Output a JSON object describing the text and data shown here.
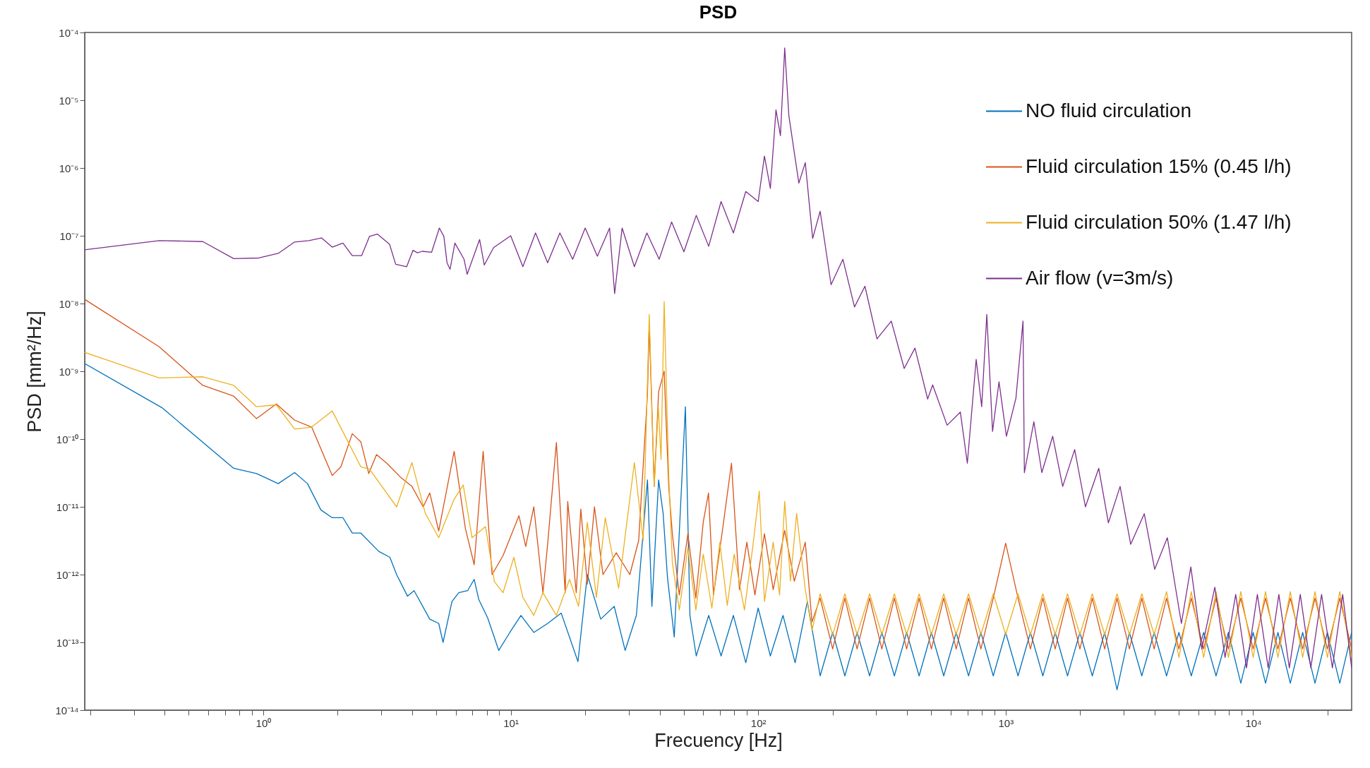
{
  "chart_data": {
    "type": "line",
    "title": "PSD",
    "xlabel": "Frecuency [Hz]",
    "ylabel": "PSD [mm²/Hz]",
    "log": "xy",
    "legend": "top right",
    "xlim": [
      0.19,
      25000
    ],
    "ylim": [
      1e-14,
      0.0001
    ],
    "xticks": [
      {
        "value": 0.2,
        "label": null
      },
      {
        "value": 0.3,
        "label": null
      },
      {
        "value": 0.4,
        "label": null
      },
      {
        "value": 0.5,
        "label": null
      },
      {
        "value": 0.6,
        "label": null
      },
      {
        "value": 0.7,
        "label": null
      },
      {
        "value": 0.8,
        "label": null
      },
      {
        "value": 0.9,
        "label": null
      },
      {
        "value": 1,
        "label": "10⁰"
      },
      {
        "value": 2,
        "label": null
      },
      {
        "value": 3,
        "label": null
      },
      {
        "value": 4,
        "label": null
      },
      {
        "value": 5,
        "label": null
      },
      {
        "value": 6,
        "label": null
      },
      {
        "value": 7,
        "label": null
      },
      {
        "value": 8,
        "label": null
      },
      {
        "value": 9,
        "label": null
      },
      {
        "value": 10,
        "label": "10¹"
      },
      {
        "value": 20,
        "label": null
      },
      {
        "value": 30,
        "label": null
      },
      {
        "value": 40,
        "label": null
      },
      {
        "value": 50,
        "label": null
      },
      {
        "value": 60,
        "label": null
      },
      {
        "value": 70,
        "label": null
      },
      {
        "value": 80,
        "label": null
      },
      {
        "value": 90,
        "label": null
      },
      {
        "value": 100,
        "label": "10²"
      },
      {
        "value": 200,
        "label": null
      },
      {
        "value": 300,
        "label": null
      },
      {
        "value": 400,
        "label": null
      },
      {
        "value": 500,
        "label": null
      },
      {
        "value": 600,
        "label": null
      },
      {
        "value": 700,
        "label": null
      },
      {
        "value": 800,
        "label": null
      },
      {
        "value": 900,
        "label": null
      },
      {
        "value": 1000,
        "label": "10³"
      },
      {
        "value": 2000,
        "label": null
      },
      {
        "value": 3000,
        "label": null
      },
      {
        "value": 4000,
        "label": null
      },
      {
        "value": 5000,
        "label": null
      },
      {
        "value": 6000,
        "label": null
      },
      {
        "value": 7000,
        "label": null
      },
      {
        "value": 8000,
        "label": null
      },
      {
        "value": 9000,
        "label": null
      },
      {
        "value": 10000,
        "label": "10⁴"
      },
      {
        "value": 20000,
        "label": null
      }
    ],
    "yticks": [
      {
        "value": 1e-14,
        "label": "10⁻¹⁴"
      },
      {
        "value": 1e-13,
        "label": "10⁻¹³"
      },
      {
        "value": 1e-12,
        "label": "10⁻¹²"
      },
      {
        "value": 1e-11,
        "label": "10⁻¹¹"
      },
      {
        "value": 1e-10,
        "label": "10⁻¹⁰"
      },
      {
        "value": 1e-09,
        "label": "10⁻⁹"
      },
      {
        "value": 1e-08,
        "label": "10⁻⁸"
      },
      {
        "value": 1e-07,
        "label": "10⁻⁷"
      },
      {
        "value": 1e-06,
        "label": "10⁻⁶"
      },
      {
        "value": 1e-05,
        "label": "10⁻⁵"
      },
      {
        "value": 0.0001,
        "label": "10⁻⁴"
      }
    ],
    "series": [
      {
        "name": "NO fluid circulation",
        "color": "#0072bd",
        "x": [
          0.19,
          0.39,
          0.76,
          0.94,
          1.15,
          1.34,
          1.51,
          1.71,
          1.9,
          2.1,
          2.29,
          2.48,
          2.93,
          3.25,
          3.46,
          3.83,
          4.07,
          4.71,
          5.12,
          5.33,
          5.79,
          6.17,
          6.7,
          7.12,
          7.43,
          8.07,
          8.95,
          9.92,
          11,
          12.4,
          14.1,
          16,
          18.7,
          20.4,
          23.1,
          26.2,
          29,
          32.2,
          35.7,
          37.2,
          39.6,
          41.3,
          43,
          45.8,
          50.8,
          53,
          56.2,
          63.1,
          70.8,
          79.4,
          89.1,
          100,
          112,
          126,
          141,
          158,
          178,
          200,
          224,
          251,
          282,
          316,
          355,
          398,
          447,
          501,
          562,
          631,
          708,
          794,
          891,
          1000,
          1122,
          1259,
          1413,
          1585,
          1778,
          1995,
          2239,
          2512,
          2818,
          3162,
          3548,
          3981,
          4467,
          5012,
          5623,
          6310,
          7079,
          7943,
          8913,
          10000,
          11220,
          12590,
          14130,
          15850,
          17780,
          19950,
          22390,
          25000
        ],
        "values": [
          1.3e-09,
          2.9e-10,
          3.7e-11,
          3.1e-11,
          2.2e-11,
          3.2e-11,
          2.2e-11,
          9e-12,
          6.9e-12,
          6.9e-12,
          4.1e-12,
          4.1e-12,
          2.2e-12,
          1.8e-12,
          1e-12,
          4.8e-13,
          5.8e-13,
          2.2e-13,
          1.9e-13,
          1e-13,
          4e-13,
          5.4e-13,
          5.8e-13,
          8.5e-13,
          4.3e-13,
          2.3e-13,
          7.6e-14,
          1.4e-13,
          2.5e-13,
          1.4e-13,
          1.9e-13,
          2.7e-13,
          5.2e-14,
          1e-12,
          2.2e-13,
          3.4e-13,
          7.6e-14,
          2.5e-13,
          2.5e-11,
          3.4e-13,
          2.5e-11,
          8e-12,
          9.1e-13,
          1.2e-13,
          3e-10,
          2.5e-13,
          6.3e-14,
          2.5e-13,
          6.3e-14,
          2.5e-13,
          5e-14,
          3.2e-13,
          6.3e-14,
          2.5e-13,
          5e-14,
          4e-13,
          3.2e-14,
          1.4e-13,
          3.2e-14,
          1.4e-13,
          3.2e-14,
          1.4e-13,
          3.2e-14,
          1.4e-13,
          3.2e-14,
          1.4e-13,
          3.2e-14,
          1.4e-13,
          3.2e-14,
          1.4e-13,
          3.2e-14,
          1.4e-13,
          3.2e-14,
          1.4e-13,
          3.2e-14,
          1.4e-13,
          3.2e-14,
          1.4e-13,
          3.2e-14,
          1.4e-13,
          2e-14,
          1.4e-13,
          3.2e-14,
          1.4e-13,
          3.2e-14,
          1.4e-13,
          3.2e-14,
          1.4e-13,
          3.2e-14,
          1.4e-13,
          2.5e-14,
          1.4e-13,
          2.5e-14,
          1.4e-13,
          2.5e-14,
          1.4e-13,
          2.5e-14,
          1.4e-13,
          2.5e-14,
          1.4e-13
        ]
      },
      {
        "name": "Fluid circulation 15% (0.45 l/h)",
        "color": "#d95319",
        "x": [
          0.19,
          0.38,
          0.57,
          0.76,
          0.94,
          1.13,
          1.34,
          1.57,
          1.9,
          2.06,
          2.29,
          2.48,
          2.67,
          2.87,
          3.18,
          3.6,
          3.99,
          4.43,
          4.71,
          5.12,
          5.91,
          6.56,
          7.12,
          7.74,
          8.41,
          9.31,
          10.8,
          11.5,
          12.4,
          13.5,
          14.1,
          15.3,
          16.6,
          17,
          18.4,
          19.2,
          20.4,
          21.8,
          23.6,
          26.7,
          30.3,
          32.9,
          35.7,
          36.3,
          38,
          39.6,
          41.7,
          43.5,
          45,
          48,
          52,
          56,
          60,
          63,
          66,
          72,
          78,
          84,
          90,
          97,
          106,
          115,
          128,
          140,
          155,
          165,
          178,
          200,
          224,
          251,
          282,
          316,
          355,
          398,
          447,
          501,
          562,
          631,
          708,
          794,
          891,
          1000,
          1122,
          1259,
          1413,
          1585,
          1778,
          1995,
          2239,
          2512,
          2818,
          3162,
          3548,
          3981,
          4467,
          5012,
          5623,
          6310,
          7079,
          7943,
          8913,
          10000,
          11220,
          12590,
          14130,
          15850,
          17780,
          19950,
          22390,
          25000
        ],
        "values": [
          1.15e-08,
          2.3e-09,
          6.2e-10,
          4.3e-10,
          2e-10,
          3.3e-10,
          1.9e-10,
          1.5e-10,
          2.9e-11,
          3.9e-11,
          1.2e-10,
          9.1e-11,
          3.1e-11,
          5.9e-11,
          4.3e-11,
          2.7e-11,
          2e-11,
          1e-11,
          1.6e-11,
          4.4e-12,
          6.6e-11,
          4.8e-12,
          1.4e-12,
          6.6e-11,
          1e-12,
          1.9e-12,
          7.4e-12,
          2.6e-12,
          1e-11,
          5.4e-13,
          2.8e-12,
          8.9e-11,
          5.4e-13,
          1.2e-11,
          5.4e-13,
          9.3e-12,
          7.2e-13,
          1e-11,
          1e-12,
          2.1e-12,
          1e-12,
          3.2e-12,
          4.6e-10,
          5e-09,
          2e-11,
          5e-10,
          1e-09,
          2e-11,
          4e-12,
          5e-13,
          4e-12,
          4.5e-13,
          6e-12,
          1.6e-11,
          5e-13,
          5e-12,
          4.4e-11,
          6e-13,
          3e-12,
          5e-13,
          4e-12,
          6e-13,
          4.5e-12,
          8e-13,
          3e-12,
          2e-13,
          4.5e-13,
          8e-14,
          4.5e-13,
          8e-14,
          4.5e-13,
          8e-14,
          4.5e-13,
          8e-14,
          4.5e-13,
          8e-14,
          4.5e-13,
          8e-14,
          4.5e-13,
          8e-14,
          4.5e-13,
          2.9e-12,
          4.5e-13,
          8e-14,
          4.5e-13,
          8e-14,
          4.5e-13,
          8e-14,
          4.5e-13,
          8e-14,
          4.5e-13,
          8e-14,
          4.5e-13,
          8e-14,
          4.5e-13,
          8e-14,
          4.5e-13,
          8e-14,
          4.5e-13,
          8e-14,
          4.5e-13,
          8e-14,
          4.5e-13,
          8e-14,
          4.5e-13,
          8e-14,
          4.5e-13,
          8e-14,
          4.5e-13,
          8e-14
        ]
      },
      {
        "name": "Fluid circulation 50% (1.47 l/h)",
        "color": "#edb120",
        "x": [
          0.19,
          0.38,
          0.57,
          0.76,
          0.94,
          1.13,
          1.34,
          1.57,
          1.9,
          2.48,
          2.69,
          3.46,
          3.99,
          4.52,
          5.12,
          5.91,
          6.43,
          6.98,
          7.91,
          8.59,
          9.31,
          10.3,
          11.2,
          12.4,
          13.5,
          15.3,
          17.3,
          18.8,
          20.4,
          22.2,
          24.1,
          27.3,
          31.6,
          34.3,
          36.3,
          38,
          39.5,
          40.5,
          41.7,
          43.5,
          45,
          48,
          52,
          56,
          60,
          65,
          70,
          75,
          80,
          88,
          95,
          101,
          106,
          115,
          122,
          128,
          135,
          143,
          155,
          165,
          178,
          200,
          224,
          251,
          282,
          316,
          355,
          398,
          447,
          501,
          562,
          631,
          708,
          794,
          891,
          1000,
          1122,
          1259,
          1413,
          1585,
          1778,
          1995,
          2239,
          2512,
          2818,
          3162,
          3548,
          3981,
          4467,
          5012,
          5623,
          6310,
          7079,
          7943,
          8913,
          10000,
          11220,
          12590,
          14130,
          15850,
          17780,
          19950,
          22390,
          25000
        ],
        "values": [
          1.9e-09,
          8e-10,
          8.3e-10,
          6.2e-10,
          3e-10,
          3.2e-10,
          1.4e-10,
          1.5e-10,
          2.6e-10,
          3.9e-11,
          3.6e-11,
          1e-11,
          4.5e-11,
          8e-12,
          3.5e-12,
          1.3e-11,
          2.1e-11,
          3.5e-12,
          5.1e-12,
          7.9e-13,
          5.4e-13,
          1.8e-12,
          4.6e-13,
          2.5e-13,
          5.4e-13,
          2.5e-13,
          8.5e-13,
          3.4e-13,
          5.9e-12,
          4.6e-13,
          6.9e-12,
          6.3e-13,
          4.5e-11,
          3.2e-12,
          6.9e-09,
          2e-11,
          3e-10,
          5e-11,
          1.07e-08,
          3e-11,
          1.5e-12,
          3e-13,
          2.5e-12,
          3e-13,
          2e-12,
          3.2e-13,
          3e-12,
          3.5e-13,
          2e-12,
          3e-13,
          2.5e-12,
          1.7e-11,
          4e-13,
          3e-12,
          5e-13,
          1.2e-11,
          8e-13,
          8e-12,
          6e-13,
          1.5e-13,
          5.2e-13,
          1.3e-13,
          5.2e-13,
          1.3e-13,
          5.2e-13,
          1.3e-13,
          5.2e-13,
          1.3e-13,
          5.2e-13,
          1.3e-13,
          5.2e-13,
          1.3e-13,
          5.2e-13,
          1.3e-13,
          5.2e-13,
          1.3e-13,
          5.2e-13,
          1.3e-13,
          5.2e-13,
          1.3e-13,
          5.2e-13,
          1.3e-13,
          5.2e-13,
          1.3e-13,
          5.2e-13,
          1.3e-13,
          5.2e-13,
          1.3e-13,
          5.6e-13,
          6e-14,
          5.6e-13,
          6e-14,
          5.6e-13,
          6e-14,
          5.6e-13,
          6e-14,
          5.6e-13,
          6e-14,
          5.6e-13,
          6e-14,
          5.6e-13,
          6e-14,
          5.6e-13,
          6e-14
        ]
      },
      {
        "name": "Air flow (v=3m/s)",
        "color": "#7e2f8e",
        "x": [
          0.19,
          0.38,
          0.57,
          0.76,
          0.96,
          1.15,
          1.34,
          1.53,
          1.72,
          1.9,
          2.1,
          2.29,
          2.5,
          2.69,
          2.89,
          3.24,
          3.43,
          3.8,
          4.03,
          4.2,
          4.39,
          4.79,
          5.15,
          5.37,
          5.53,
          5.69,
          5.95,
          6.48,
          6.67,
          7.49,
          7.82,
          8.53,
          10,
          11.2,
          12.6,
          14.1,
          15.8,
          17.8,
          20,
          22.4,
          25.1,
          26.3,
          28.2,
          31.6,
          35.5,
          39.8,
          44.7,
          50.1,
          56.2,
          63.1,
          70.8,
          79.4,
          89.1,
          100,
          106,
          112,
          118,
          123,
          128,
          133,
          139,
          146,
          155,
          166,
          178,
          197,
          220,
          245,
          270,
          302,
          345,
          389,
          430,
          484,
          507,
          580,
          656,
          700,
          760,
          800,
          839,
          885,
          940,
          1007,
          1100,
          1175,
          1190,
          1300,
          1400,
          1549,
          1700,
          1900,
          2100,
          2377,
          2600,
          2900,
          3200,
          3631,
          4000,
          4500,
          5129,
          5600,
          6200,
          7000,
          7700,
          8500,
          9400,
          10400,
          11500,
          12700,
          14000,
          15500,
          17100,
          18900,
          20900,
          23000,
          25000
        ],
        "values": [
          6.2e-08,
          8.5e-08,
          8.2e-08,
          4.6e-08,
          4.7e-08,
          5.5e-08,
          8.1e-08,
          8.5e-08,
          9.3e-08,
          6.8e-08,
          7.8e-08,
          5.1e-08,
          5.1e-08,
          9.8e-08,
          1.06e-07,
          7.5e-08,
          3.8e-08,
          3.5e-08,
          6.1e-08,
          5.6e-08,
          5.9e-08,
          5.7e-08,
          1.3e-07,
          9.8e-08,
          4e-08,
          3.2e-08,
          7.8e-08,
          4.5e-08,
          2.7e-08,
          8.8e-08,
          3.7e-08,
          6.7e-08,
          1e-07,
          3.5e-08,
          1.1e-07,
          4e-08,
          1.1e-07,
          4.5e-08,
          1.3e-07,
          5e-08,
          1.3e-07,
          1.4e-08,
          1.3e-07,
          3.5e-08,
          1.1e-07,
          4.5e-08,
          1.6e-07,
          5.8e-08,
          2e-07,
          7e-08,
          3.2e-07,
          1.1e-07,
          4.5e-07,
          3.2e-07,
          1.5e-06,
          5e-07,
          7.2e-06,
          3e-06,
          5.9e-05,
          6e-06,
          2e-06,
          6e-07,
          1.2e-06,
          9.1e-08,
          2.3e-07,
          1.9e-08,
          4.5e-08,
          8.9e-09,
          1.8e-08,
          3e-09,
          5.5e-09,
          1.1e-09,
          2.2e-09,
          3.9e-10,
          6.3e-10,
          1.6e-10,
          2.5e-10,
          4.4e-11,
          1.5e-09,
          3e-10,
          6.9e-09,
          1.3e-10,
          7e-10,
          1.1e-10,
          4e-10,
          5.5e-09,
          3.2e-11,
          1.8e-10,
          3.2e-11,
          1.1e-10,
          2e-11,
          7e-11,
          1e-11,
          3.7e-11,
          5.8e-12,
          2e-11,
          2.8e-12,
          7.9e-12,
          1.2e-12,
          3.5e-12,
          1.9e-13,
          1.3e-12,
          8e-14,
          6.5e-13,
          6e-14,
          5.1e-13,
          4.2e-14,
          5.1e-13,
          4.2e-14,
          5.1e-13,
          4.2e-14,
          5.1e-13,
          4.2e-14,
          5.1e-13,
          4.2e-14,
          5.1e-13,
          4.2e-14
        ]
      }
    ]
  }
}
